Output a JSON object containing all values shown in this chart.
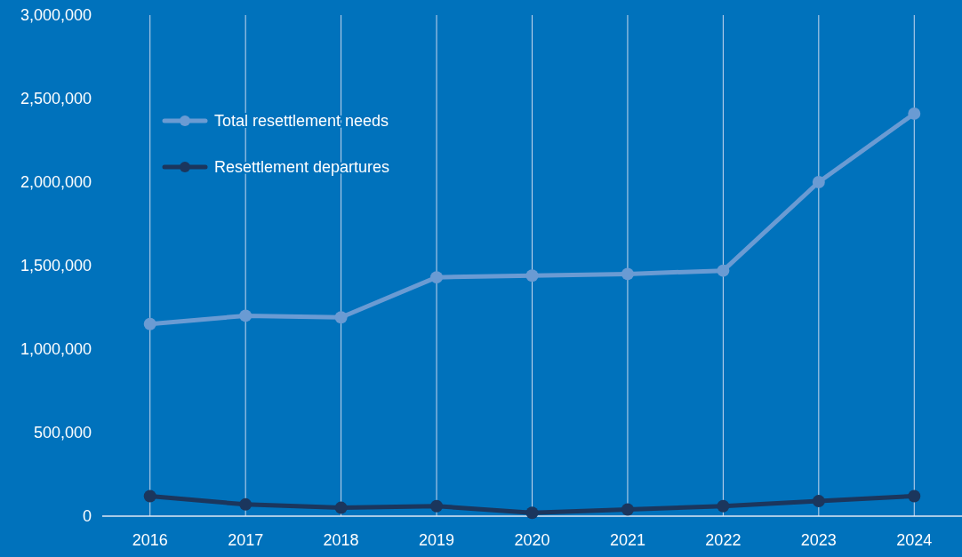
{
  "chart_data": {
    "type": "line",
    "categories": [
      "2016",
      "2017",
      "2018",
      "2019",
      "2020",
      "2021",
      "2022",
      "2023",
      "2024"
    ],
    "series": [
      {
        "name": "Total resettlement needs",
        "color": "#6a9bd3",
        "values": [
          1150000,
          1200000,
          1190000,
          1430000,
          1440000,
          1450000,
          1470000,
          2000000,
          2410000
        ]
      },
      {
        "name": "Resettlement departures",
        "color": "#1b365d",
        "values": [
          120000,
          70000,
          50000,
          60000,
          20000,
          40000,
          60000,
          90000,
          120000
        ]
      }
    ],
    "ylim": [
      0,
      3000000
    ],
    "yticks": [
      {
        "value": 0,
        "label": "0"
      },
      {
        "value": 500000,
        "label": "500,000"
      },
      {
        "value": 1000000,
        "label": "1,000,000"
      },
      {
        "value": 1500000,
        "label": "1,500,000"
      },
      {
        "value": 2000000,
        "label": "2,000,000"
      },
      {
        "value": 2500000,
        "label": "2,500,000"
      },
      {
        "value": 3000000,
        "label": "3,000,000"
      }
    ],
    "grid": "x",
    "legend": "top left",
    "marker": "circle",
    "line_style": "solid"
  }
}
